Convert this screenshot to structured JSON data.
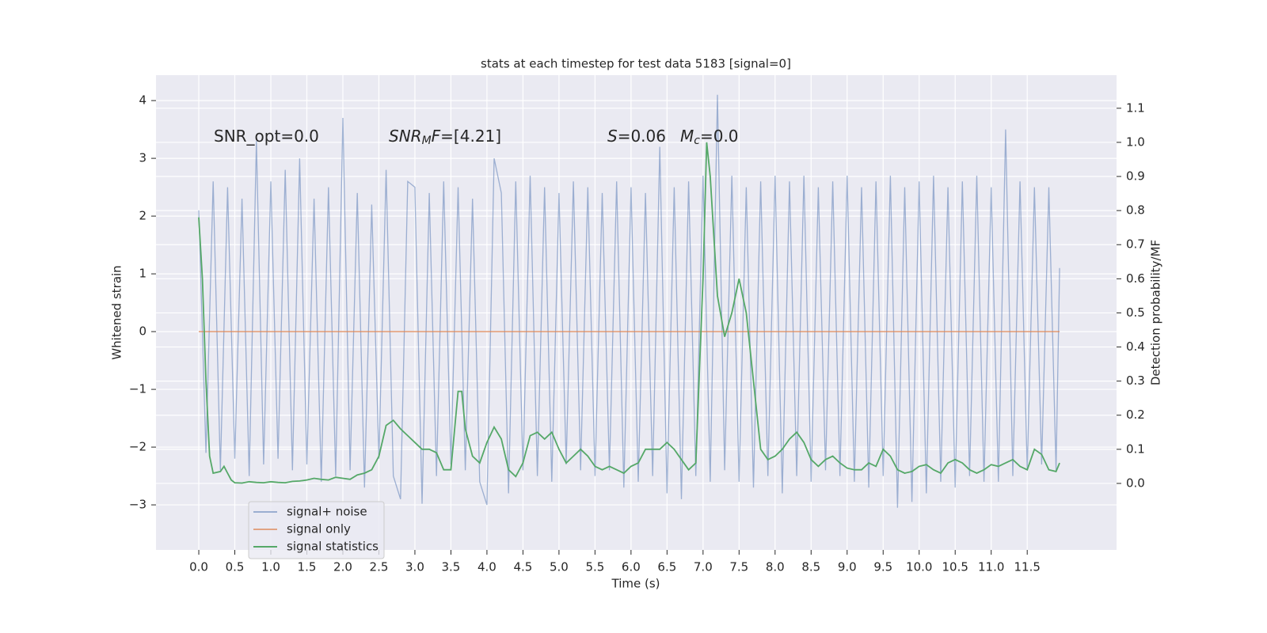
{
  "chart_data": {
    "type": "line",
    "title": "stats at each timestep for test data 5183 [signal=0]",
    "x_label": "Time (s)",
    "y_label": "Whitened strain",
    "y2_label": "Detection probability/MF",
    "xlim": [
      -0.594,
      12.74
    ],
    "ylim": [
      -3.78,
      4.44
    ],
    "y2lim": [
      -0.195,
      1.197
    ],
    "xticks": [
      {
        "value": 0,
        "label": "0.0"
      },
      0.5,
      {
        "value": 1,
        "label": "1.0"
      },
      1.5,
      {
        "value": 2,
        "label": "2.0"
      },
      2.5,
      {
        "value": 3,
        "label": "3.0"
      },
      3.5,
      {
        "value": 4,
        "label": "4.0"
      },
      4.5,
      {
        "value": 5,
        "label": "5.0"
      },
      5.5,
      {
        "value": 6,
        "label": "6.0"
      },
      6.5,
      {
        "value": 7,
        "label": "7.0"
      },
      7.5,
      {
        "value": 8,
        "label": "8.0"
      },
      8.5,
      {
        "value": 9,
        "label": "9.0"
      },
      9.5,
      {
        "value": 10,
        "label": "10.0"
      },
      10.5,
      {
        "value": 11,
        "label": "11.0"
      },
      11.5
    ],
    "yticks": [
      {
        "value": -3,
        "label": "−3"
      },
      {
        "value": -2,
        "label": "−2"
      },
      {
        "value": -1,
        "label": "−1"
      },
      0,
      1,
      2,
      3,
      4
    ],
    "y2ticks": [
      {
        "value": 0,
        "label": "0.0"
      },
      0.1,
      0.2,
      0.3,
      0.4,
      0.5,
      0.6,
      0.7,
      0.8,
      0.9,
      {
        "value": 1,
        "label": "1.0"
      },
      1.1
    ],
    "grid": true,
    "legend": "lower left",
    "annotations": [
      [
        {
          "text": "SNR_opt=0.0"
        }
      ],
      [
        {
          "text": "SNR",
          "italic": true
        },
        {
          "text": "M",
          "italic": true,
          "sub": true
        },
        {
          "text": "F",
          "italic": true
        },
        {
          "text": "=[4.21]"
        }
      ],
      [
        {
          "text": "S",
          "italic": true
        },
        {
          "text": "=0.06"
        }
      ],
      [
        {
          "text": "M",
          "italic": true
        },
        {
          "text": "c",
          "italic": true,
          "sub": true
        },
        {
          "text": "=0.0"
        }
      ]
    ],
    "series": [
      {
        "name": "signal+ noise",
        "color": "#4c72b0",
        "opacity": 0.5,
        "axis": "y",
        "x": [
          0,
          0.1,
          0.2,
          0.3,
          0.4,
          0.5,
          0.6,
          0.7,
          0.8,
          0.9,
          1,
          1.1,
          1.2,
          1.3,
          1.4,
          1.5,
          1.6,
          1.7,
          1.8,
          1.9,
          2,
          2.1,
          2.2,
          2.3,
          2.4,
          2.5,
          2.6,
          2.7,
          2.8,
          2.9,
          3,
          3.1,
          3.2,
          3.3,
          3.4,
          3.5,
          3.6,
          3.7,
          3.8,
          3.9,
          4,
          4.1,
          4.2,
          4.3,
          4.4,
          4.5,
          4.6,
          4.7,
          4.8,
          4.9,
          5,
          5.1,
          5.2,
          5.3,
          5.4,
          5.5,
          5.6,
          5.7,
          5.8,
          5.9,
          6,
          6.1,
          6.2,
          6.3,
          6.4,
          6.5,
          6.6,
          6.7,
          6.8,
          6.9,
          7,
          7.1,
          7.2,
          7.3,
          7.4,
          7.5,
          7.6,
          7.7,
          7.8,
          7.9,
          8,
          8.1,
          8.2,
          8.3,
          8.4,
          8.5,
          8.6,
          8.7,
          8.8,
          8.9,
          9,
          9.1,
          9.2,
          9.3,
          9.4,
          9.5,
          9.6,
          9.7,
          9.8,
          9.9,
          10,
          10.1,
          10.2,
          10.3,
          10.4,
          10.5,
          10.6,
          10.7,
          10.8,
          10.9,
          11,
          11.1,
          11.2,
          11.3,
          11.4,
          11.5,
          11.6,
          11.7,
          11.8,
          11.9,
          11.95
        ],
        "values": [
          2.1,
          -2.1,
          2.6,
          -2.4,
          2.5,
          -2.2,
          2.3,
          -2.5,
          3.3,
          -2.3,
          2.6,
          -2.2,
          2.8,
          -2.4,
          3.0,
          -2.3,
          2.3,
          -2.6,
          2.5,
          -2.5,
          3.7,
          -2.4,
          2.4,
          -2.7,
          2.2,
          -2.2,
          2.8,
          -2.5,
          -2.9,
          2.6,
          2.5,
          -2.98,
          2.4,
          -2.5,
          2.6,
          -2.3,
          2.5,
          -2.4,
          2.3,
          -2.6,
          -3.0,
          3.0,
          2.4,
          -2.8,
          2.6,
          -2.4,
          2.7,
          -2.5,
          2.5,
          -2.6,
          2.4,
          -2.3,
          2.6,
          -2.4,
          2.5,
          -2.5,
          2.4,
          -2.4,
          2.6,
          -2.7,
          2.5,
          -2.6,
          2.4,
          -2.5,
          3.2,
          -2.8,
          2.5,
          -2.9,
          2.6,
          -2.5,
          2.7,
          -2.6,
          4.1,
          -2.4,
          2.7,
          -2.6,
          2.5,
          -2.7,
          2.6,
          -2.5,
          2.7,
          -2.8,
          2.6,
          -2.5,
          2.7,
          -2.6,
          2.5,
          -2.4,
          2.6,
          -2.5,
          2.7,
          -2.6,
          2.5,
          -2.7,
          2.6,
          -2.5,
          2.7,
          -3.05,
          2.5,
          -2.95,
          2.6,
          -2.8,
          2.7,
          -2.6,
          2.5,
          -2.7,
          2.6,
          -2.5,
          2.7,
          -2.6,
          2.5,
          -2.6,
          3.5,
          -2.5,
          2.6,
          -2.4,
          2.5,
          -2.3,
          2.5,
          -2.4,
          1.1
        ]
      },
      {
        "name": "signal only",
        "color": "#dd8452",
        "opacity": 0.7,
        "axis": "y",
        "x": [
          0,
          11.95
        ],
        "values": [
          0,
          0
        ]
      },
      {
        "name": "signal statistics",
        "color": "#55a868",
        "opacity": 1,
        "axis": "y2",
        "x": [
          0,
          0.05,
          0.1,
          0.15,
          0.2,
          0.3,
          0.35,
          0.4,
          0.45,
          0.5,
          0.6,
          0.7,
          0.8,
          0.9,
          1,
          1.1,
          1.2,
          1.3,
          1.4,
          1.5,
          1.6,
          1.7,
          1.8,
          1.9,
          2,
          2.1,
          2.2,
          2.3,
          2.4,
          2.5,
          2.6,
          2.7,
          2.8,
          2.9,
          3,
          3.1,
          3.2,
          3.3,
          3.4,
          3.5,
          3.6,
          3.65,
          3.7,
          3.8,
          3.9,
          4,
          4.1,
          4.2,
          4.3,
          4.4,
          4.5,
          4.6,
          4.7,
          4.8,
          4.9,
          5,
          5.1,
          5.2,
          5.3,
          5.4,
          5.5,
          5.6,
          5.7,
          5.8,
          5.9,
          6,
          6.1,
          6.2,
          6.3,
          6.4,
          6.5,
          6.6,
          6.7,
          6.8,
          6.9,
          7,
          7.05,
          7.1,
          7.2,
          7.3,
          7.4,
          7.5,
          7.6,
          7.7,
          7.8,
          7.9,
          8,
          8.1,
          8.2,
          8.3,
          8.4,
          8.5,
          8.6,
          8.7,
          8.8,
          8.9,
          9,
          9.1,
          9.2,
          9.3,
          9.4,
          9.5,
          9.6,
          9.7,
          9.8,
          9.9,
          10,
          10.1,
          10.2,
          10.3,
          10.4,
          10.5,
          10.6,
          10.7,
          10.8,
          10.9,
          11,
          11.1,
          11.2,
          11.3,
          11.4,
          11.5,
          11.6,
          11.7,
          11.8,
          11.9,
          11.95
        ],
        "values": [
          0.78,
          0.6,
          0.3,
          0.08,
          0.03,
          0.035,
          0.05,
          0.03,
          0.01,
          0.002,
          0.001,
          0.005,
          0.003,
          0.002,
          0.005,
          0.003,
          0.002,
          0.006,
          0.007,
          0.01,
          0.015,
          0.012,
          0.01,
          0.018,
          0.015,
          0.012,
          0.025,
          0.03,
          0.04,
          0.08,
          0.17,
          0.185,
          0.16,
          0.14,
          0.12,
          0.1,
          0.1,
          0.09,
          0.04,
          0.04,
          0.27,
          0.27,
          0.16,
          0.08,
          0.06,
          0.12,
          0.165,
          0.13,
          0.04,
          0.02,
          0.06,
          0.14,
          0.15,
          0.13,
          0.15,
          0.1,
          0.06,
          0.08,
          0.1,
          0.08,
          0.05,
          0.04,
          0.05,
          0.04,
          0.03,
          0.05,
          0.06,
          0.1,
          0.1,
          0.1,
          0.12,
          0.1,
          0.07,
          0.04,
          0.06,
          0.6,
          1.0,
          0.9,
          0.55,
          0.43,
          0.5,
          0.6,
          0.5,
          0.3,
          0.1,
          0.07,
          0.08,
          0.1,
          0.13,
          0.15,
          0.12,
          0.07,
          0.05,
          0.07,
          0.08,
          0.06,
          0.045,
          0.04,
          0.04,
          0.06,
          0.05,
          0.1,
          0.08,
          0.04,
          0.03,
          0.035,
          0.05,
          0.055,
          0.04,
          0.03,
          0.06,
          0.07,
          0.06,
          0.04,
          0.03,
          0.04,
          0.055,
          0.05,
          0.06,
          0.07,
          0.05,
          0.04,
          0.1,
          0.085,
          0.04,
          0.035,
          0.06
        ]
      }
    ]
  }
}
